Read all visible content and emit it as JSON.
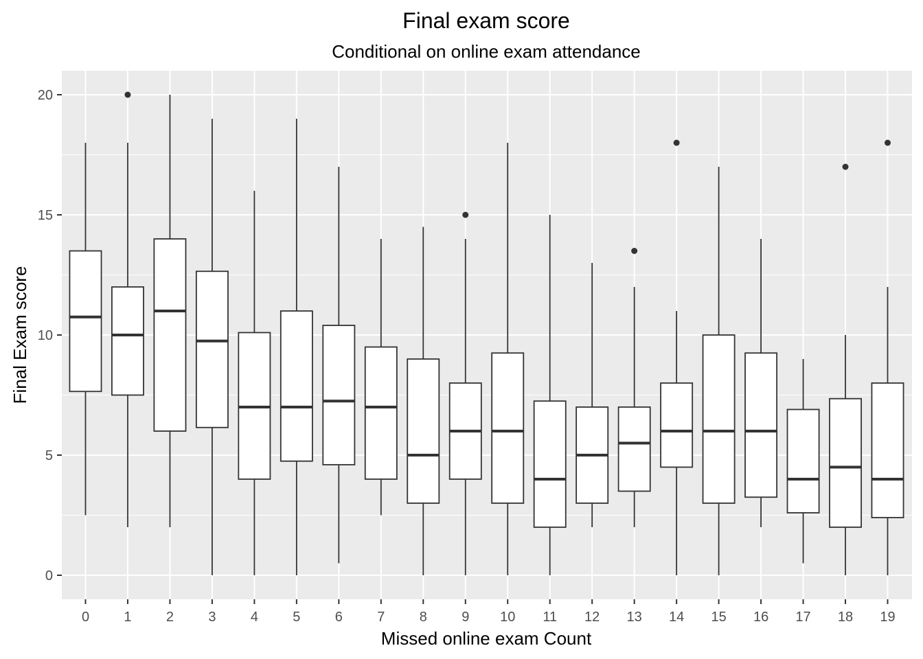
{
  "chart_data": {
    "type": "boxplot",
    "title": "Final exam score",
    "subtitle": "Conditional on online exam attendance",
    "xlabel": "Missed online exam Count",
    "ylabel": "Final Exam score",
    "ylim": [
      -1,
      21
    ],
    "yticks": [
      0,
      5,
      10,
      15,
      20
    ],
    "grid": true,
    "colors": {
      "panel": "#ebebeb",
      "grid": "#ffffff",
      "box_fill": "#ffffff",
      "box_line": "#333333"
    },
    "categories": [
      "0",
      "1",
      "2",
      "3",
      "4",
      "5",
      "6",
      "7",
      "8",
      "9",
      "10",
      "11",
      "12",
      "13",
      "14",
      "15",
      "16",
      "17",
      "18",
      "19"
    ],
    "boxes": [
      {
        "min": 2.5,
        "q1": 7.65,
        "median": 10.75,
        "q3": 13.5,
        "max": 18,
        "outliers": []
      },
      {
        "min": 2,
        "q1": 7.5,
        "median": 10,
        "q3": 12,
        "max": 18,
        "outliers": [
          20
        ]
      },
      {
        "min": 2,
        "q1": 6,
        "median": 11,
        "q3": 14,
        "max": 20,
        "outliers": []
      },
      {
        "min": 0,
        "q1": 6.15,
        "median": 9.75,
        "q3": 12.65,
        "max": 19,
        "outliers": []
      },
      {
        "min": 0,
        "q1": 4,
        "median": 7,
        "q3": 10.1,
        "max": 16,
        "outliers": []
      },
      {
        "min": 0,
        "q1": 4.75,
        "median": 7,
        "q3": 11,
        "max": 19,
        "outliers": []
      },
      {
        "min": 0.5,
        "q1": 4.6,
        "median": 7.25,
        "q3": 10.4,
        "max": 17,
        "outliers": []
      },
      {
        "min": 2.5,
        "q1": 4,
        "median": 7,
        "q3": 9.5,
        "max": 14,
        "outliers": []
      },
      {
        "min": 0,
        "q1": 3,
        "median": 5,
        "q3": 9,
        "max": 14.5,
        "outliers": []
      },
      {
        "min": 0,
        "q1": 4,
        "median": 6,
        "q3": 8,
        "max": 14,
        "outliers": [
          15
        ]
      },
      {
        "min": 0,
        "q1": 3,
        "median": 6,
        "q3": 9.25,
        "max": 18,
        "outliers": []
      },
      {
        "min": 0,
        "q1": 2,
        "median": 4,
        "q3": 7.25,
        "max": 15,
        "outliers": []
      },
      {
        "min": 2,
        "q1": 3,
        "median": 5,
        "q3": 7,
        "max": 13,
        "outliers": []
      },
      {
        "min": 2,
        "q1": 3.5,
        "median": 5.5,
        "q3": 7,
        "max": 12,
        "outliers": [
          13.5
        ]
      },
      {
        "min": 0,
        "q1": 4.5,
        "median": 6,
        "q3": 8,
        "max": 11,
        "outliers": [
          18
        ]
      },
      {
        "min": 0,
        "q1": 3,
        "median": 6,
        "q3": 10,
        "max": 17,
        "outliers": []
      },
      {
        "min": 2,
        "q1": 3.25,
        "median": 6,
        "q3": 9.25,
        "max": 14,
        "outliers": []
      },
      {
        "min": 0.5,
        "q1": 2.6,
        "median": 4,
        "q3": 6.9,
        "max": 9,
        "outliers": []
      },
      {
        "min": 0,
        "q1": 2,
        "median": 4.5,
        "q3": 7.35,
        "max": 10,
        "outliers": [
          17
        ]
      },
      {
        "min": 0,
        "q1": 2.4,
        "median": 4,
        "q3": 8,
        "max": 12,
        "outliers": [
          18
        ]
      }
    ]
  }
}
